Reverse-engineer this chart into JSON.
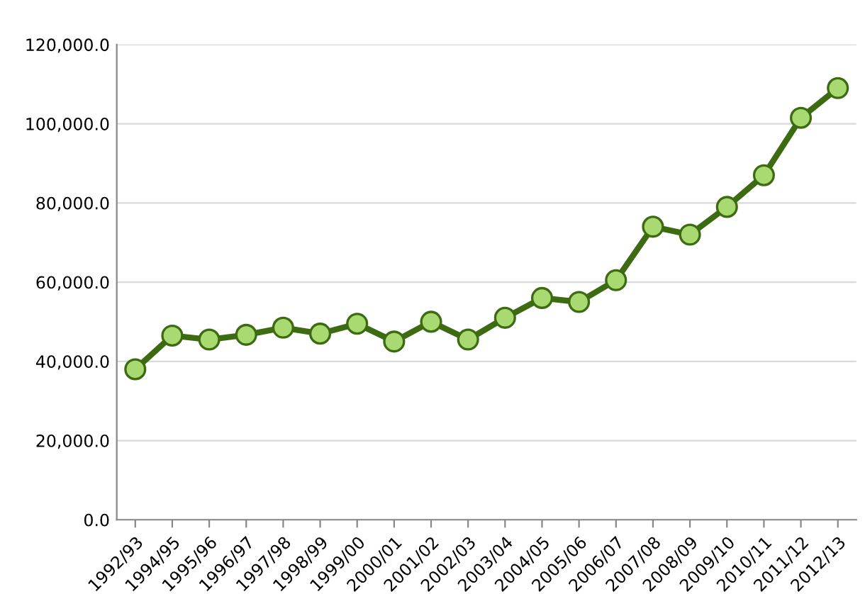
{
  "chart_data": {
    "type": "line",
    "categories": [
      "1992/93",
      "1994/95",
      "1995/96",
      "1996/97",
      "1997/98",
      "1998/99",
      "1999/00",
      "2000/01",
      "2001/02",
      "2002/03",
      "2003/04",
      "2004/05",
      "2005/06",
      "2006/07",
      "2007/08",
      "2008/09",
      "2009/10",
      "2010/11",
      "2011/12",
      "2012/13"
    ],
    "series": [
      {
        "color": "#3d6b12",
        "values": [
          38000,
          46500,
          45500,
          46700,
          48500,
          47000,
          49500,
          45000,
          50000,
          45500,
          51000,
          56000,
          55000,
          60500,
          74000,
          72000,
          79000,
          87000,
          101500,
          109000
        ]
      }
    ],
    "ylim": [
      0,
      120000
    ],
    "yticks": [
      {
        "value": 0,
        "label": "0.0"
      },
      {
        "value": 20000,
        "label": "20,000.0"
      },
      {
        "value": 40000,
        "label": "40,000.0"
      },
      {
        "value": 60000,
        "label": "60,000.0"
      },
      {
        "value": 80000,
        "label": "80,000.0"
      },
      {
        "value": 100000,
        "label": "100,000.0"
      },
      {
        "value": 120000,
        "label": "120,000.0"
      }
    ],
    "grid": "y",
    "marker": "circle",
    "line_style": "solid"
  }
}
